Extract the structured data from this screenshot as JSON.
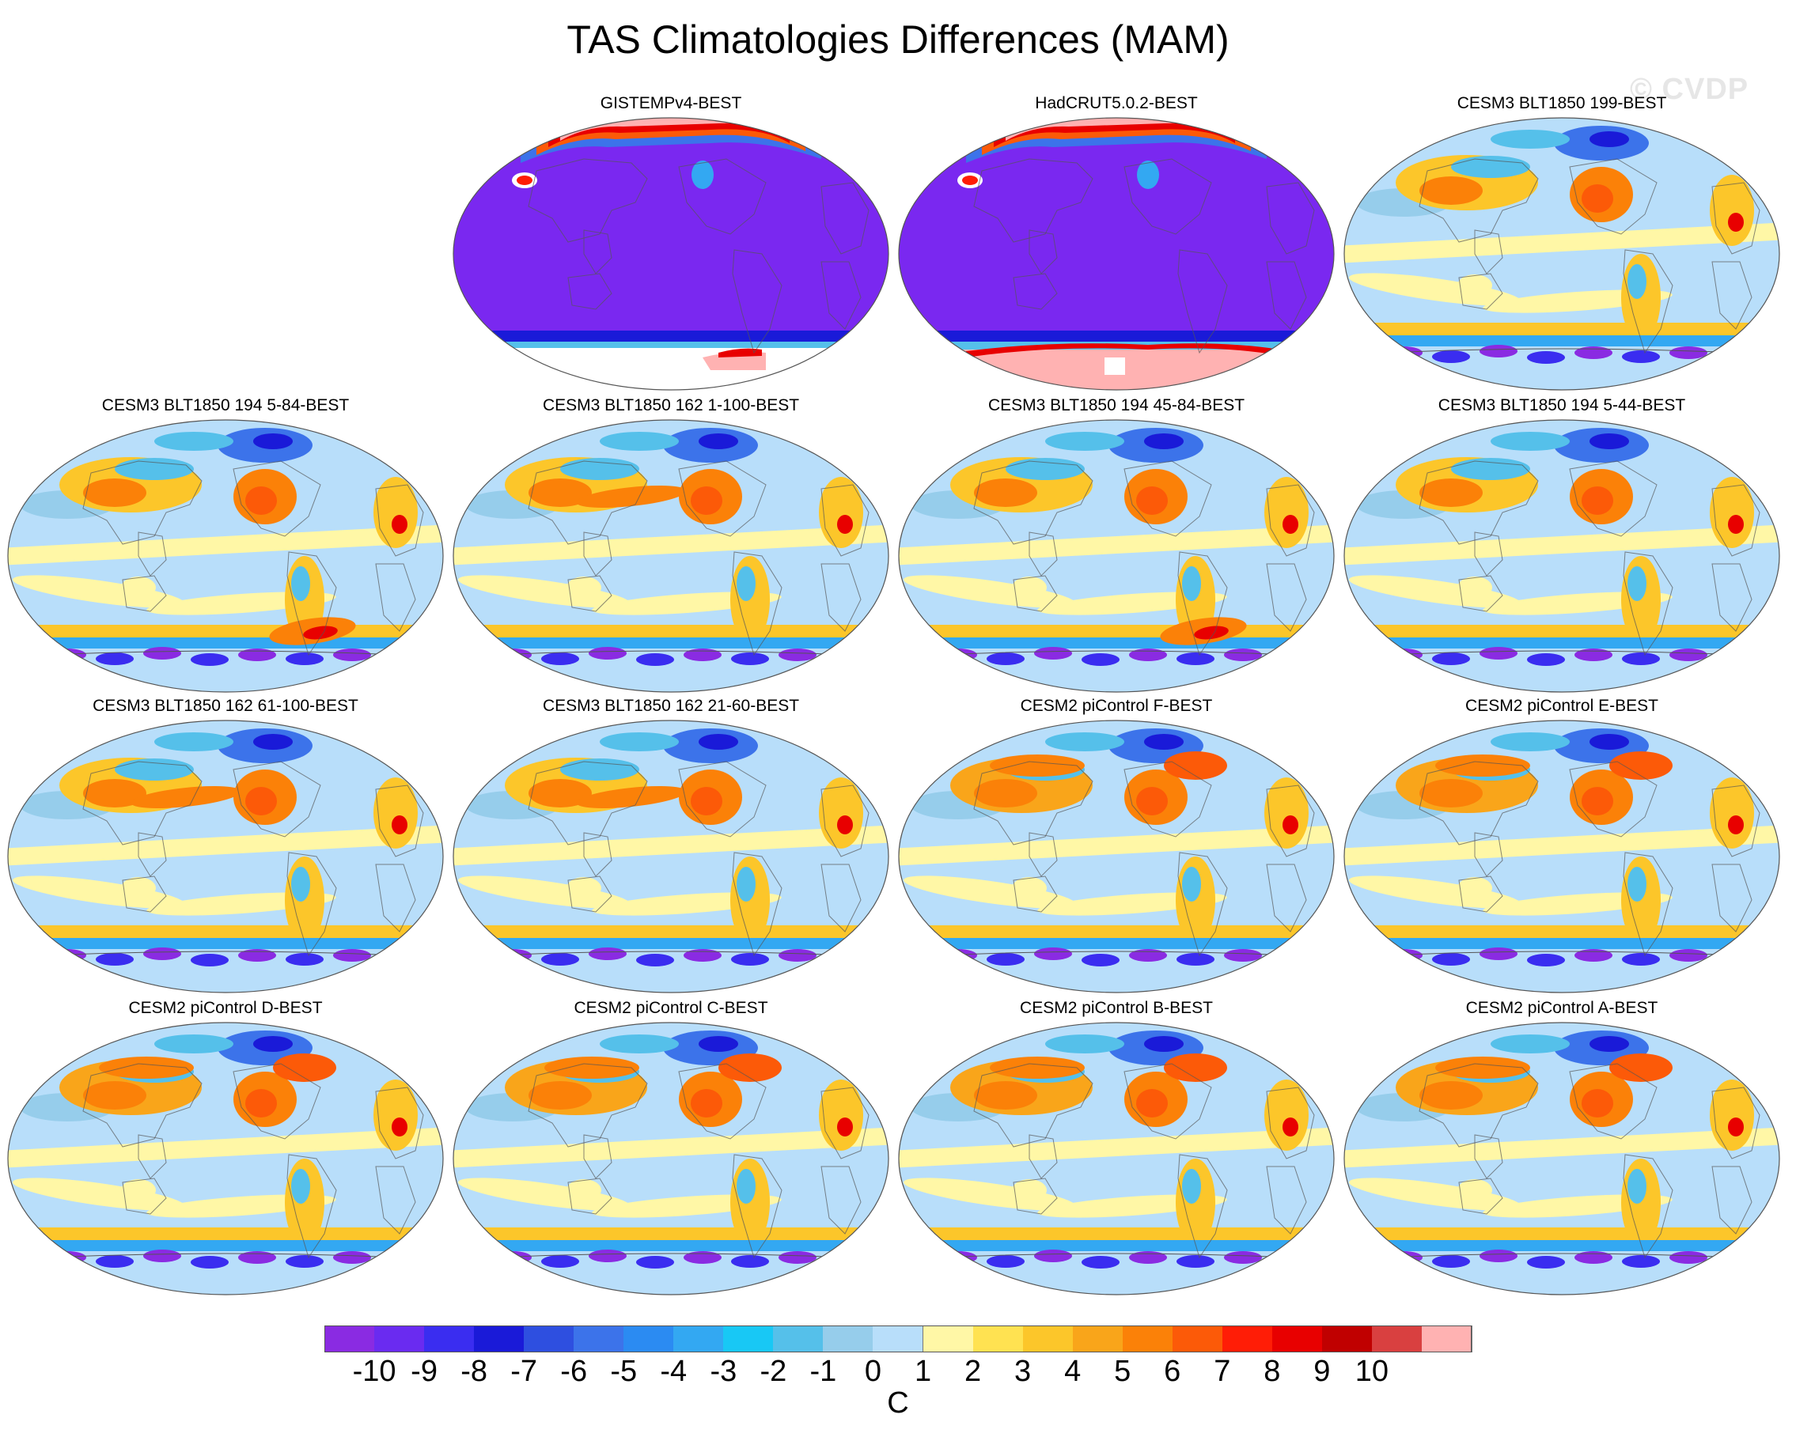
{
  "title": "TAS Climatologies Differences (MAM)",
  "watermark": "© CVDP",
  "variable_units": "C",
  "colorbar": {
    "colors": [
      "#8a2be2",
      "#6a2bf0",
      "#3a2df0",
      "#1a1ad8",
      "#2e4fe0",
      "#3c73ea",
      "#2b8bf2",
      "#33a8f2",
      "#18c8f5",
      "#55c0ea",
      "#96cdeb",
      "#b8defa",
      "#fff7a6",
      "#ffe251",
      "#fcc62a",
      "#f9a51a",
      "#fb8108",
      "#fc5a08",
      "#ff1d06",
      "#e80000",
      "#c00000",
      "#d94040",
      "#ffb2b2"
    ],
    "tick_labels": [
      "-10",
      "-9",
      "-8",
      "-7",
      "-6",
      "-5",
      "-4",
      "-3",
      "-2",
      "-1",
      "0",
      "1",
      "2",
      "3",
      "4",
      "5",
      "6",
      "7",
      "8",
      "9",
      "10"
    ]
  },
  "panels": [
    {
      "title": "GISTEMPv4-BEST",
      "style": "obs_gistemp"
    },
    {
      "title": "HadCRUT5.0.2-BEST",
      "style": "obs_hadcrut"
    },
    {
      "title": "CESM3 BLT1850 199-BEST",
      "style": "model_a"
    },
    {
      "title": "CESM3 BLT1850 194 5-84-BEST",
      "style": "model_b"
    },
    {
      "title": "CESM3 BLT1850 162 1-100-BEST",
      "style": "model_c"
    },
    {
      "title": "CESM3 BLT1850 194 45-84-BEST",
      "style": "model_b"
    },
    {
      "title": "CESM3 BLT1850 194 5-44-BEST",
      "style": "model_a"
    },
    {
      "title": "CESM3 BLT1850 162 61-100-BEST",
      "style": "model_c"
    },
    {
      "title": "CESM3 BLT1850 162 21-60-BEST",
      "style": "model_c"
    },
    {
      "title": "CESM2 piControl F-BEST",
      "style": "model_d"
    },
    {
      "title": "CESM2 piControl E-BEST",
      "style": "model_d"
    },
    {
      "title": "CESM2 piControl D-BEST",
      "style": "model_d"
    },
    {
      "title": "CESM2 piControl C-BEST",
      "style": "model_d"
    },
    {
      "title": "CESM2 piControl B-BEST",
      "style": "model_d"
    },
    {
      "title": "CESM2 piControl A-BEST",
      "style": "model_d"
    }
  ]
}
